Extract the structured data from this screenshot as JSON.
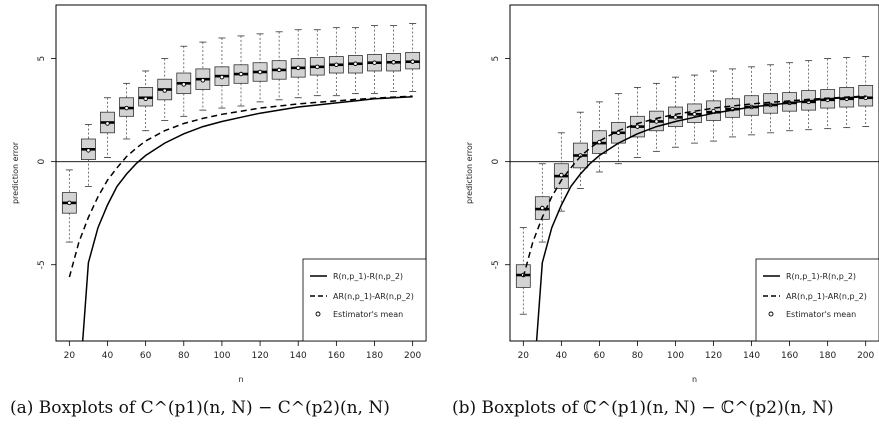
{
  "chart_data": [
    {
      "type": "box",
      "title": "",
      "xlabel": "n",
      "ylabel": "prediction error",
      "xlim": [
        13,
        207
      ],
      "ylim": [
        -8.7,
        7.6
      ],
      "grid": false,
      "x_ticks": [
        20,
        40,
        60,
        80,
        100,
        120,
        140,
        160,
        180,
        200
      ],
      "y_ticks": [
        -5,
        0,
        5
      ],
      "y_tick_labels": [
        "-5",
        "0",
        "5"
      ],
      "reference_line_y": 0,
      "legend": {
        "position": "bottom-right",
        "entries": [
          "R(n,p_1)-R(n,p_2)",
          "AR(n,p_1)-AR(n,p_2)",
          "Estimator's mean"
        ]
      },
      "x": [
        20,
        30,
        40,
        50,
        60,
        70,
        80,
        90,
        100,
        110,
        120,
        130,
        140,
        150,
        160,
        170,
        180,
        190,
        200
      ],
      "boxes": {
        "whisker_low": [
          -3.9,
          -1.2,
          0.2,
          1.1,
          1.5,
          2.0,
          2.2,
          2.5,
          2.6,
          2.7,
          2.9,
          3.0,
          3.1,
          3.2,
          3.2,
          3.3,
          3.3,
          3.4,
          3.4
        ],
        "q1": [
          -2.5,
          0.1,
          1.4,
          2.2,
          2.7,
          3.0,
          3.3,
          3.5,
          3.7,
          3.8,
          3.9,
          4.0,
          4.1,
          4.2,
          4.3,
          4.3,
          4.4,
          4.4,
          4.5
        ],
        "median": [
          -2.0,
          0.6,
          1.9,
          2.6,
          3.1,
          3.5,
          3.8,
          4.0,
          4.15,
          4.25,
          4.35,
          4.45,
          4.55,
          4.6,
          4.7,
          4.75,
          4.8,
          4.82,
          4.85
        ],
        "q3": [
          -1.5,
          1.1,
          2.4,
          3.1,
          3.6,
          4.0,
          4.3,
          4.5,
          4.6,
          4.7,
          4.8,
          4.9,
          5.0,
          5.05,
          5.1,
          5.15,
          5.2,
          5.25,
          5.3
        ],
        "whisker_high": [
          -0.4,
          1.8,
          3.1,
          3.8,
          4.4,
          5.0,
          5.6,
          5.8,
          6.0,
          6.1,
          6.2,
          6.3,
          6.4,
          6.4,
          6.5,
          6.5,
          6.6,
          6.6,
          6.7
        ],
        "mean": [
          -2.0,
          0.55,
          1.85,
          2.6,
          3.05,
          3.45,
          3.75,
          3.95,
          4.1,
          4.25,
          4.35,
          4.45,
          4.55,
          4.6,
          4.7,
          4.75,
          4.8,
          4.82,
          4.85
        ]
      },
      "curves": [
        {
          "name": "R(n,p_1)-R(n,p_2)",
          "style": "solid",
          "x": [
            27,
            30,
            35,
            40,
            45,
            50,
            55,
            60,
            70,
            80,
            90,
            100,
            110,
            120,
            130,
            140,
            150,
            160,
            170,
            180,
            190,
            200
          ],
          "y": [
            -8.7,
            -4.9,
            -3.2,
            -2.1,
            -1.2,
            -0.6,
            -0.1,
            0.3,
            0.9,
            1.35,
            1.7,
            1.95,
            2.15,
            2.35,
            2.5,
            2.65,
            2.75,
            2.85,
            2.95,
            3.05,
            3.1,
            3.15
          ]
        },
        {
          "name": "AR(n,p_1)-AR(n,p_2)",
          "style": "dashed",
          "x": [
            20,
            25,
            30,
            35,
            40,
            45,
            50,
            55,
            60,
            70,
            80,
            90,
            100,
            110,
            120,
            130,
            140,
            150,
            160,
            170,
            180,
            190,
            200
          ],
          "y": [
            -5.6,
            -3.9,
            -2.7,
            -1.7,
            -0.9,
            -0.3,
            0.25,
            0.65,
            1.0,
            1.5,
            1.85,
            2.1,
            2.3,
            2.45,
            2.6,
            2.7,
            2.8,
            2.88,
            2.95,
            3.02,
            3.08,
            3.13,
            3.18
          ]
        }
      ]
    },
    {
      "type": "box",
      "title": "",
      "xlabel": "n",
      "ylabel": "prediction error",
      "xlim": [
        13,
        207
      ],
      "ylim": [
        -8.7,
        7.6
      ],
      "grid": false,
      "x_ticks": [
        20,
        40,
        60,
        80,
        100,
        120,
        140,
        160,
        180,
        200
      ],
      "y_ticks": [
        -5,
        0,
        5
      ],
      "y_tick_labels": [
        "-5",
        "0",
        "5"
      ],
      "reference_line_y": 0,
      "legend": {
        "position": "bottom-right",
        "entries": [
          "R(n,p_1)-R(n,p_2)",
          "AR(n,p_1)-AR(n,p_2)",
          "Estimator's mean"
        ]
      },
      "x": [
        20,
        30,
        40,
        50,
        60,
        70,
        80,
        90,
        100,
        110,
        120,
        130,
        140,
        150,
        160,
        170,
        180,
        190,
        200
      ],
      "boxes": {
        "whisker_low": [
          -7.4,
          -3.9,
          -2.4,
          -1.3,
          -0.5,
          -0.1,
          0.2,
          0.5,
          0.7,
          0.9,
          1.0,
          1.2,
          1.3,
          1.4,
          1.5,
          1.55,
          1.6,
          1.65,
          1.7
        ],
        "q1": [
          -6.1,
          -2.8,
          -1.3,
          -0.3,
          0.4,
          0.9,
          1.2,
          1.5,
          1.7,
          1.9,
          2.0,
          2.15,
          2.25,
          2.35,
          2.45,
          2.5,
          2.6,
          2.65,
          2.7
        ],
        "median": [
          -5.5,
          -2.3,
          -0.7,
          0.3,
          0.9,
          1.4,
          1.7,
          1.95,
          2.15,
          2.3,
          2.4,
          2.55,
          2.65,
          2.75,
          2.85,
          2.9,
          3.0,
          3.05,
          3.1
        ],
        "q3": [
          -5.0,
          -1.7,
          -0.1,
          0.9,
          1.5,
          1.9,
          2.2,
          2.45,
          2.65,
          2.8,
          2.95,
          3.05,
          3.2,
          3.3,
          3.35,
          3.45,
          3.5,
          3.6,
          3.7
        ],
        "whisker_high": [
          -3.2,
          -0.1,
          1.4,
          2.4,
          2.9,
          3.3,
          3.6,
          3.8,
          4.1,
          4.2,
          4.4,
          4.5,
          4.6,
          4.7,
          4.8,
          4.9,
          5.0,
          5.05,
          5.1
        ],
        "mean": [
          -5.5,
          -2.25,
          -0.65,
          0.3,
          0.95,
          1.4,
          1.7,
          1.95,
          2.15,
          2.3,
          2.45,
          2.55,
          2.65,
          2.75,
          2.85,
          2.9,
          3.0,
          3.05,
          3.1
        ]
      },
      "curves": [
        {
          "name": "R(n,p_1)-R(n,p_2)",
          "style": "solid",
          "x": [
            27,
            30,
            35,
            40,
            45,
            50,
            55,
            60,
            70,
            80,
            90,
            100,
            110,
            120,
            130,
            140,
            150,
            160,
            170,
            180,
            190,
            200
          ],
          "y": [
            -8.7,
            -4.9,
            -3.2,
            -2.1,
            -1.2,
            -0.6,
            -0.1,
            0.3,
            0.9,
            1.35,
            1.7,
            1.95,
            2.15,
            2.35,
            2.5,
            2.65,
            2.75,
            2.85,
            2.95,
            3.05,
            3.1,
            3.15
          ]
        },
        {
          "name": "AR(n,p_1)-AR(n,p_2)",
          "style": "dashed",
          "x": [
            20,
            25,
            30,
            35,
            40,
            45,
            50,
            55,
            60,
            70,
            80,
            90,
            100,
            110,
            120,
            130,
            140,
            150,
            160,
            170,
            180,
            190,
            200
          ],
          "y": [
            -5.6,
            -3.9,
            -2.7,
            -1.7,
            -0.9,
            -0.3,
            0.25,
            0.65,
            1.0,
            1.5,
            1.85,
            2.1,
            2.3,
            2.45,
            2.6,
            2.7,
            2.8,
            2.88,
            2.95,
            3.02,
            3.08,
            3.13,
            3.18
          ]
        }
      ]
    }
  ],
  "captions": [
    "(a) Boxplots of C^(p1)(n, N) − C^(p2)(n, N)",
    "(b) Boxplots of ℂ^(p1)(n, N) − ℂ^(p2)(n, N)"
  ]
}
